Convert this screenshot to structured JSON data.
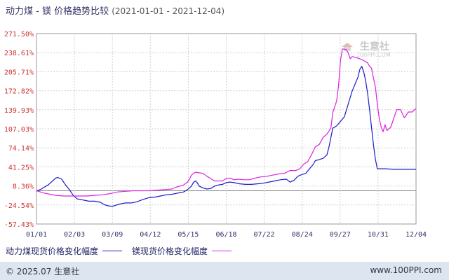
{
  "chart_data": {
    "type": "line",
    "title": "动力煤 - 镁 价格趋势比较",
    "date_range": "(2021-01-01 - 2021-12-04)",
    "ylabel": "",
    "xlabel": "",
    "ylim": [
      -57.43,
      271.5
    ],
    "y_ticks": [
      "271.50%",
      "238.61%",
      "205.71%",
      "172.82%",
      "139.93%",
      "107.03%",
      "74.14%",
      "41.25%",
      "8.36%",
      "-24.54%",
      "-57.43%"
    ],
    "x_ticks": [
      "01/01",
      "02/03",
      "03/09",
      "04/12",
      "05/15",
      "06/18",
      "07/22",
      "08/24",
      "09/27",
      "10/31",
      "12/04"
    ],
    "grid": true,
    "legend_position": "bottom-left",
    "series": [
      {
        "name": "动力煤现货价格变化幅度",
        "color": "#1a1acc",
        "points": [
          [
            0,
            0
          ],
          [
            2,
            2
          ],
          [
            4,
            6
          ],
          [
            6,
            10
          ],
          [
            8,
            16
          ],
          [
            10,
            22
          ],
          [
            11,
            23
          ],
          [
            13,
            20
          ],
          [
            15,
            10
          ],
          [
            17,
            2
          ],
          [
            19,
            -8
          ],
          [
            21,
            -14
          ],
          [
            24,
            -16
          ],
          [
            27,
            -18
          ],
          [
            30,
            -18
          ],
          [
            33,
            -20
          ],
          [
            35,
            -24
          ],
          [
            37,
            -26
          ],
          [
            39,
            -27
          ],
          [
            41,
            -25
          ],
          [
            43,
            -23
          ],
          [
            46,
            -21
          ],
          [
            49,
            -21
          ],
          [
            52,
            -19
          ],
          [
            55,
            -15
          ],
          [
            58,
            -12
          ],
          [
            61,
            -11
          ],
          [
            64,
            -9
          ],
          [
            67,
            -7
          ],
          [
            70,
            -6
          ],
          [
            73,
            -4
          ],
          [
            76,
            -2
          ],
          [
            78,
            2
          ],
          [
            80,
            8
          ],
          [
            81,
            14
          ],
          [
            82,
            17
          ],
          [
            83,
            14
          ],
          [
            84,
            8
          ],
          [
            86,
            5
          ],
          [
            88,
            3
          ],
          [
            90,
            4
          ],
          [
            92,
            8
          ],
          [
            94,
            10
          ],
          [
            96,
            11
          ],
          [
            98,
            14
          ],
          [
            100,
            15
          ],
          [
            102,
            14
          ],
          [
            105,
            12
          ],
          [
            108,
            11
          ],
          [
            111,
            11
          ],
          [
            114,
            12
          ],
          [
            117,
            13
          ],
          [
            120,
            15
          ],
          [
            123,
            17
          ],
          [
            126,
            19
          ],
          [
            129,
            20
          ],
          [
            131,
            15
          ],
          [
            133,
            18
          ],
          [
            135,
            25
          ],
          [
            137,
            28
          ],
          [
            139,
            30
          ],
          [
            141,
            38
          ],
          [
            143,
            46
          ],
          [
            144,
            52
          ],
          [
            146,
            54
          ],
          [
            148,
            56
          ],
          [
            150,
            62
          ],
          [
            151,
            75
          ],
          [
            153,
            108
          ],
          [
            155,
            112
          ],
          [
            157,
            120
          ],
          [
            159,
            128
          ],
          [
            161,
            150
          ],
          [
            163,
            172
          ],
          [
            165,
            188
          ],
          [
            166,
            196
          ],
          [
            167,
            210
          ],
          [
            168,
            215
          ],
          [
            169,
            205
          ],
          [
            170,
            190
          ],
          [
            171,
            168
          ],
          [
            172,
            140
          ],
          [
            173,
            110
          ],
          [
            174,
            80
          ],
          [
            175,
            55
          ],
          [
            176,
            38
          ],
          [
            180,
            38
          ],
          [
            185,
            37
          ],
          [
            190,
            37
          ],
          [
            196,
            37
          ]
        ]
      },
      {
        "name": "镁现货价格变化幅度",
        "color": "#dd22dd",
        "points": [
          [
            0,
            0
          ],
          [
            2,
            -2
          ],
          [
            4,
            -4
          ],
          [
            7,
            -6
          ],
          [
            10,
            -8
          ],
          [
            14,
            -9
          ],
          [
            18,
            -9
          ],
          [
            22,
            -9
          ],
          [
            26,
            -9
          ],
          [
            30,
            -8
          ],
          [
            34,
            -7
          ],
          [
            38,
            -5
          ],
          [
            42,
            -2
          ],
          [
            46,
            -1
          ],
          [
            50,
            0
          ],
          [
            54,
            0
          ],
          [
            58,
            0
          ],
          [
            62,
            1
          ],
          [
            66,
            2
          ],
          [
            70,
            3
          ],
          [
            72,
            6
          ],
          [
            74,
            8
          ],
          [
            76,
            10
          ],
          [
            78,
            15
          ],
          [
            79,
            20
          ],
          [
            80,
            27
          ],
          [
            82,
            32
          ],
          [
            84,
            31
          ],
          [
            86,
            30
          ],
          [
            88,
            25
          ],
          [
            90,
            21
          ],
          [
            92,
            17
          ],
          [
            94,
            17
          ],
          [
            96,
            17
          ],
          [
            98,
            21
          ],
          [
            100,
            22
          ],
          [
            102,
            19
          ],
          [
            104,
            20
          ],
          [
            107,
            19
          ],
          [
            110,
            19
          ],
          [
            113,
            22
          ],
          [
            116,
            24
          ],
          [
            119,
            25
          ],
          [
            122,
            27
          ],
          [
            125,
            29
          ],
          [
            128,
            30
          ],
          [
            131,
            35
          ],
          [
            134,
            35
          ],
          [
            136,
            38
          ],
          [
            138,
            46
          ],
          [
            140,
            50
          ],
          [
            142,
            62
          ],
          [
            144,
            76
          ],
          [
            146,
            80
          ],
          [
            148,
            92
          ],
          [
            150,
            98
          ],
          [
            152,
            108
          ],
          [
            153,
            135
          ],
          [
            155,
            155
          ],
          [
            156,
            182
          ],
          [
            157,
            226
          ],
          [
            158,
            245
          ],
          [
            160,
            244
          ],
          [
            161,
            238
          ],
          [
            162,
            228
          ],
          [
            163,
            232
          ],
          [
            165,
            230
          ],
          [
            167,
            228
          ],
          [
            169,
            225
          ],
          [
            171,
            221
          ],
          [
            172,
            215
          ],
          [
            173,
            212
          ],
          [
            174,
            195
          ],
          [
            175,
            180
          ],
          [
            176,
            150
          ],
          [
            177,
            125
          ],
          [
            178,
            110
          ],
          [
            179,
            102
          ],
          [
            180,
            114
          ],
          [
            181,
            104
          ],
          [
            183,
            110
          ],
          [
            185,
            130
          ],
          [
            186,
            140
          ],
          [
            188,
            140
          ],
          [
            190,
            126
          ],
          [
            192,
            136
          ],
          [
            194,
            136
          ],
          [
            196,
            142
          ]
        ]
      }
    ],
    "x_domain_days": [
      0,
      196
    ]
  },
  "watermark": {
    "brand": "生意社",
    "url": "100PPI.COM"
  },
  "footer": {
    "left": "© 2025.07 生意社",
    "right": "www.100PPI.com"
  }
}
